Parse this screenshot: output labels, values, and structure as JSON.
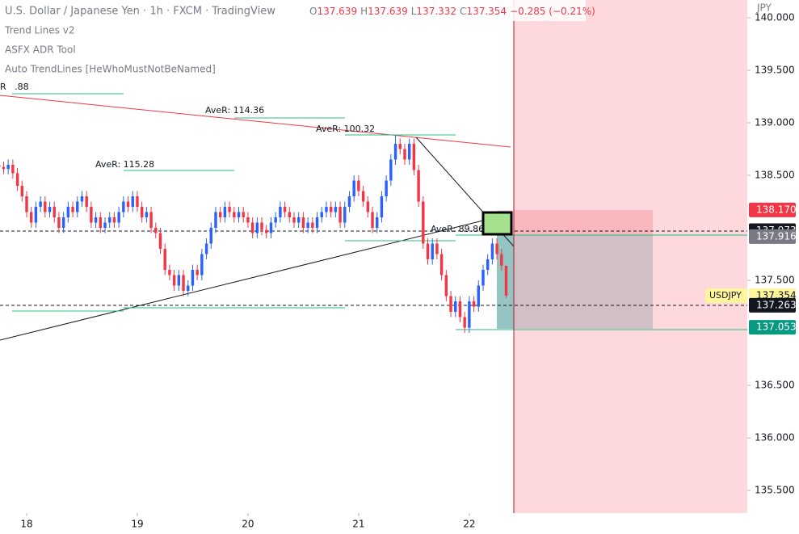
{
  "header": {
    "symbol": "U.S. Dollar / Japanese Yen · 1h · FXCM · TradingView",
    "ohlc": [
      {
        "key": "O",
        "value": "137.639"
      },
      {
        "key": "H",
        "value": "137.639"
      },
      {
        "key": "L",
        "value": "137.332"
      },
      {
        "key": "C",
        "value": "137.354"
      }
    ],
    "change": "−0.285 (−0.21%)"
  },
  "indicators": [
    "Trend Lines v2",
    "ASFX ADR Tool",
    "Auto TrendLines [HeWhoMustNotBeNamed]"
  ],
  "chart_data": {
    "type": "candlestick",
    "currency": "JPY",
    "annotations": [
      "R   .88",
      "AveR: 114.36",
      "AveR: 100.32",
      "AveR: 115.28",
      "AveR: 89.86"
    ],
    "up_color": "#2962ff",
    "down_color": "#f23645",
    "xlim": [
      0.22,
      162.3
    ],
    "xticks": [
      {
        "value": 6,
        "label": "18"
      },
      {
        "value": 30,
        "label": "19"
      },
      {
        "value": 54,
        "label": "20"
      },
      {
        "value": 78,
        "label": "21"
      },
      {
        "value": 102,
        "label": "22"
      }
    ],
    "ylim": [
      135.285,
      140.169
    ],
    "yticks": [
      {
        "value": 140,
        "label": "140.000"
      },
      {
        "value": 139.5,
        "label": "139.500"
      },
      {
        "value": 139,
        "label": "139.000"
      },
      {
        "value": 138.5,
        "label": "138.500"
      },
      {
        "value": 137.5,
        "label": "137.500"
      },
      {
        "value": 136.5,
        "label": "136.500"
      },
      {
        "value": 136,
        "label": "136.000"
      },
      {
        "value": 135.5,
        "label": "135.500"
      }
    ],
    "price_labels": [
      {
        "value": 138.17,
        "label": "138.170",
        "color": "#f23645"
      },
      {
        "value": 137.973,
        "label": "137.973",
        "color": "#131722"
      },
      {
        "value": 137.916,
        "label": "137.916",
        "color": "#787b86"
      },
      {
        "value": 137.354,
        "label": "137.354",
        "name": "USDJPY",
        "color": "#fff59d"
      },
      {
        "value": 137.263,
        "label": "137.263",
        "color": "#131722"
      },
      {
        "value": 137.053,
        "label": "137.053",
        "color": "#089981"
      }
    ],
    "x": [
      0,
      1,
      2,
      3,
      4,
      5,
      6,
      7,
      8,
      9,
      10,
      11,
      12,
      13,
      14,
      15,
      16,
      17,
      18,
      19,
      20,
      21,
      22,
      23,
      24,
      25,
      26,
      27,
      28,
      29,
      30,
      31,
      32,
      33,
      34,
      35,
      36,
      37,
      38,
      39,
      40,
      41,
      42,
      43,
      44,
      45,
      46,
      47,
      48,
      49,
      50,
      51,
      52,
      53,
      54,
      55,
      56,
      57,
      58,
      59,
      60,
      61,
      62,
      63,
      64,
      65,
      66,
      67,
      68,
      69,
      70,
      71,
      72,
      73,
      74,
      75,
      76,
      77,
      78,
      79,
      80,
      81,
      82,
      83,
      84,
      85,
      86,
      87,
      88,
      89,
      90,
      91,
      92,
      93,
      94,
      95,
      96,
      97,
      98,
      99,
      100,
      101,
      102,
      103,
      104,
      105,
      106,
      107,
      108,
      109,
      110
    ],
    "open": [
      138.6,
      138.58,
      138.56,
      138.6,
      138.52,
      138.4,
      138.3,
      138.15,
      138.05,
      138.2,
      138.25,
      138.15,
      138.2,
      138.1,
      138.0,
      138.1,
      138.2,
      138.15,
      138.25,
      138.3,
      138.2,
      138.05,
      138.1,
      138.0,
      138.05,
      138.1,
      138.05,
      138.15,
      138.25,
      138.2,
      138.3,
      138.2,
      138.1,
      138.15,
      138.0,
      137.95,
      137.8,
      137.6,
      137.55,
      137.45,
      137.55,
      137.4,
      137.45,
      137.6,
      137.55,
      137.75,
      137.85,
      138.0,
      138.15,
      138.1,
      138.2,
      138.15,
      138.1,
      138.15,
      138.1,
      138.05,
      137.95,
      138.05,
      137.98,
      137.95,
      138.05,
      138.1,
      138.2,
      138.15,
      138.1,
      138.05,
      138.1,
      138.0,
      138.05,
      138.0,
      138.1,
      138.15,
      138.2,
      138.15,
      138.2,
      138.05,
      138.2,
      138.3,
      138.45,
      138.35,
      138.25,
      138.15,
      138.0,
      138.1,
      138.3,
      138.45,
      138.65,
      138.8,
      138.75,
      138.65,
      138.8,
      138.55,
      138.25,
      137.85,
      137.7,
      137.85,
      137.75,
      137.55,
      137.35,
      137.2,
      137.3,
      137.15,
      137.05,
      137.3,
      137.25,
      137.45,
      137.6,
      137.7,
      137.85,
      137.75,
      137.639
    ],
    "high": [
      138.65,
      138.63,
      138.65,
      138.65,
      138.57,
      138.45,
      138.35,
      138.2,
      138.25,
      138.3,
      138.3,
      138.25,
      138.25,
      138.15,
      138.15,
      138.25,
      138.25,
      138.3,
      138.35,
      138.35,
      138.25,
      138.15,
      138.15,
      138.1,
      138.15,
      138.15,
      138.2,
      138.3,
      138.3,
      138.35,
      138.35,
      138.25,
      138.2,
      138.2,
      138.05,
      138.0,
      137.85,
      137.65,
      137.6,
      137.6,
      137.6,
      137.5,
      137.65,
      137.65,
      137.8,
      137.9,
      138.05,
      138.2,
      138.2,
      138.25,
      138.25,
      138.2,
      138.2,
      138.2,
      138.15,
      138.1,
      138.1,
      138.1,
      138.03,
      138.1,
      138.15,
      138.25,
      138.25,
      138.2,
      138.15,
      138.15,
      138.15,
      138.1,
      138.1,
      138.15,
      138.2,
      138.25,
      138.25,
      138.25,
      138.25,
      138.25,
      138.35,
      138.5,
      138.5,
      138.4,
      138.3,
      138.2,
      138.15,
      138.35,
      138.5,
      138.7,
      138.88,
      138.85,
      138.8,
      138.85,
      138.85,
      138.6,
      138.3,
      137.9,
      137.9,
      137.9,
      137.8,
      137.6,
      137.4,
      137.35,
      137.35,
      137.2,
      137.35,
      137.35,
      137.5,
      137.65,
      137.75,
      137.9,
      137.9,
      137.8,
      137.639
    ],
    "low": [
      138.53,
      138.51,
      138.51,
      138.47,
      138.35,
      138.25,
      138.1,
      138.0,
      138.0,
      138.15,
      138.1,
      138.1,
      138.05,
      137.95,
      137.95,
      138.05,
      138.1,
      138.1,
      138.2,
      138.15,
      138.0,
      138.0,
      137.95,
      137.95,
      138.0,
      138.0,
      138.0,
      138.1,
      138.15,
      138.15,
      138.15,
      138.05,
      138.05,
      137.95,
      137.9,
      137.75,
      137.55,
      137.5,
      137.4,
      137.4,
      137.35,
      137.35,
      137.4,
      137.5,
      137.5,
      137.7,
      137.8,
      137.95,
      138.05,
      138.05,
      138.1,
      138.05,
      138.05,
      138.05,
      138.0,
      137.9,
      137.9,
      137.93,
      137.9,
      137.9,
      138.0,
      138.05,
      138.1,
      138.05,
      138.0,
      138.0,
      137.95,
      137.95,
      137.95,
      137.95,
      138.05,
      138.1,
      138.1,
      138.1,
      138.0,
      138.0,
      138.15,
      138.25,
      138.3,
      138.2,
      138.1,
      137.95,
      137.95,
      138.05,
      138.25,
      138.4,
      138.6,
      138.7,
      138.6,
      138.6,
      138.5,
      138.2,
      137.8,
      137.65,
      137.65,
      137.7,
      137.5,
      137.3,
      137.15,
      137.15,
      137.1,
      137.0,
      137.0,
      137.2,
      137.2,
      137.4,
      137.55,
      137.65,
      137.7,
      137.59,
      137.332
    ],
    "close": [
      138.58,
      138.56,
      138.6,
      138.52,
      138.4,
      138.3,
      138.15,
      138.05,
      138.2,
      138.25,
      138.15,
      138.2,
      138.1,
      138.0,
      138.1,
      138.2,
      138.15,
      138.25,
      138.3,
      138.2,
      138.05,
      138.1,
      138.0,
      138.05,
      138.1,
      138.05,
      138.15,
      138.25,
      138.2,
      138.3,
      138.2,
      138.1,
      138.15,
      138.0,
      137.95,
      137.8,
      137.6,
      137.55,
      137.45,
      137.55,
      137.4,
      137.45,
      137.6,
      137.55,
      137.75,
      137.85,
      138.0,
      138.15,
      138.1,
      138.2,
      138.15,
      138.1,
      138.15,
      138.1,
      138.05,
      137.95,
      138.05,
      137.98,
      137.95,
      138.05,
      138.1,
      138.2,
      138.15,
      138.1,
      138.05,
      138.1,
      138.0,
      138.05,
      138.0,
      138.1,
      138.15,
      138.2,
      138.15,
      138.2,
      138.05,
      138.2,
      138.3,
      138.45,
      138.35,
      138.25,
      138.15,
      138.0,
      138.1,
      138.3,
      138.45,
      138.65,
      138.8,
      138.75,
      138.65,
      138.8,
      138.55,
      138.25,
      137.85,
      137.7,
      137.85,
      137.75,
      137.55,
      137.35,
      137.2,
      137.3,
      137.15,
      137.05,
      137.3,
      137.25,
      137.45,
      137.6,
      137.7,
      137.85,
      137.75,
      137.64,
      137.354
    ]
  }
}
